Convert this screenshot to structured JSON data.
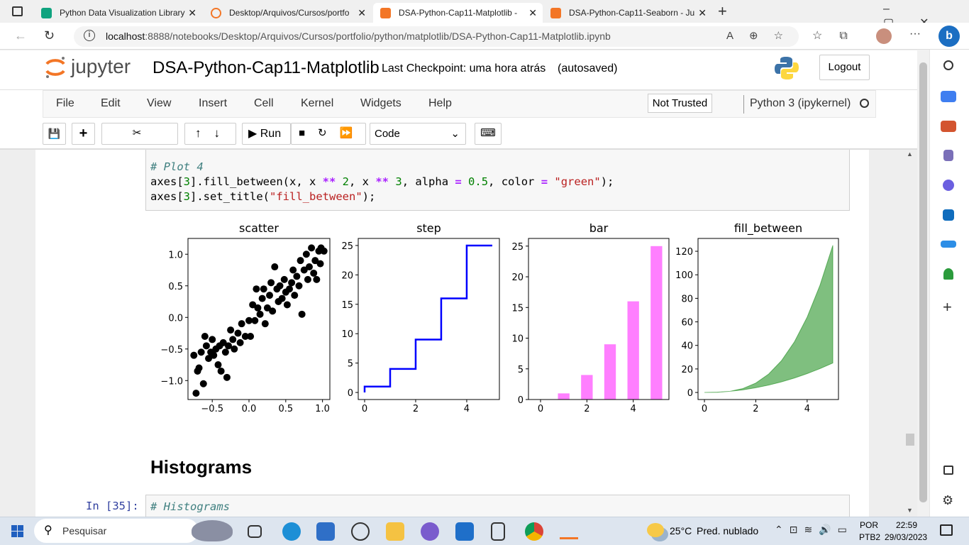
{
  "browser": {
    "tabs": [
      "Python Data Visualization Library",
      "Desktop/Arquivos/Cursos/portfo",
      "DSA-Python-Cap11-Matplotlib -",
      "DSA-Python-Cap11-Seaborn - Ju"
    ],
    "url_host": "localhost",
    "url_path": ":8888/notebooks/Desktop/Arquivos/Cursos/portfolio/python/matplotlib/DSA-Python-Cap11-Matplotlib.ipynb"
  },
  "header": {
    "logo": "jupyter",
    "notebook_title": "DSA-Python-Cap11-Matplotlib",
    "checkpoint": "Last Checkpoint: uma hora atrás",
    "autosave": "(autosaved)",
    "logout": "Logout"
  },
  "menu": {
    "items": [
      "File",
      "Edit",
      "View",
      "Insert",
      "Cell",
      "Kernel",
      "Widgets",
      "Help"
    ],
    "trust": "Not Trusted",
    "kernel": "Python 3 (ipykernel)"
  },
  "toolbar": {
    "run": "Run",
    "cell_type": "Code"
  },
  "cells": [
    {
      "code": [
        "# Plot 4",
        "axes[3].fill_between(x, x ** 2, x ** 3, alpha = 0.5, color = \"green\");",
        "axes[3].set_title(\"fill_between\");"
      ]
    },
    {
      "heading": "Histograms"
    },
    {
      "prompt": "In [35]:",
      "code": [
        "# Histograms"
      ]
    }
  ],
  "chart_data": [
    {
      "type": "scatter",
      "title": "scatter",
      "color": "black",
      "x": [
        -0.75,
        -0.72,
        -0.7,
        -0.68,
        -0.65,
        -0.62,
        -0.6,
        -0.58,
        -0.55,
        -0.52,
        -0.5,
        -0.48,
        -0.45,
        -0.42,
        -0.4,
        -0.38,
        -0.35,
        -0.32,
        -0.3,
        -0.28,
        -0.25,
        -0.22,
        -0.2,
        -0.15,
        -0.12,
        -0.1,
        -0.05,
        0.0,
        0.02,
        0.05,
        0.08,
        0.1,
        0.12,
        0.15,
        0.18,
        0.2,
        0.22,
        0.25,
        0.28,
        0.3,
        0.32,
        0.35,
        0.38,
        0.4,
        0.42,
        0.45,
        0.48,
        0.5,
        0.52,
        0.55,
        0.58,
        0.6,
        0.62,
        0.65,
        0.68,
        0.7,
        0.72,
        0.75,
        0.78,
        0.8,
        0.82,
        0.85,
        0.88,
        0.9,
        0.92,
        0.95,
        0.98,
        1.02,
        0.97
      ],
      "values": [
        -0.6,
        -1.2,
        -0.85,
        -0.8,
        -0.55,
        -1.05,
        -0.3,
        -0.45,
        -0.65,
        -0.55,
        -0.35,
        -0.6,
        -0.5,
        -0.75,
        -0.45,
        -0.85,
        -0.4,
        -0.55,
        -0.95,
        -0.45,
        -0.2,
        -0.35,
        -0.5,
        -0.25,
        -0.4,
        -0.1,
        -0.3,
        -0.05,
        -0.3,
        0.2,
        -0.05,
        0.45,
        0.15,
        0.05,
        0.3,
        0.45,
        -0.1,
        0.15,
        0.35,
        0.55,
        0.1,
        0.8,
        0.45,
        0.25,
        0.5,
        0.3,
        0.6,
        0.4,
        0.2,
        0.45,
        0.55,
        0.75,
        0.35,
        0.65,
        0.5,
        0.9,
        0.05,
        0.75,
        1.0,
        0.6,
        0.8,
        1.1,
        0.7,
        0.9,
        0.6,
        1.05,
        1.1,
        1.05,
        0.85
      ],
      "xlim": [
        -0.83,
        1.1
      ],
      "ylim": [
        -1.3,
        1.25
      ],
      "xticks": [
        {
          "value": -0.5,
          "label": "−0.5"
        },
        {
          "value": 0,
          "label": "0.0"
        },
        0.5,
        {
          "value": 1,
          "label": "1.0"
        }
      ],
      "yticks": [
        {
          "value": -1,
          "label": "−1.0"
        },
        {
          "value": -0.5,
          "label": "−0.5"
        },
        {
          "value": 0,
          "label": "0.0"
        },
        0.5,
        {
          "value": 1,
          "label": "1.0"
        }
      ]
    },
    {
      "type": "step",
      "title": "step",
      "color": "blue",
      "x": [
        0,
        1,
        2,
        3,
        4,
        5
      ],
      "values": [
        0,
        1,
        4,
        9,
        16,
        25
      ],
      "xlim": [
        -0.25,
        5.28
      ],
      "ylim": [
        -1.2,
        26.2
      ],
      "xticks": [
        0,
        2,
        4
      ],
      "yticks": [
        0,
        5,
        10,
        15,
        20,
        25
      ]
    },
    {
      "type": "bar",
      "title": "bar",
      "color": "magenta",
      "alpha": 0.5,
      "bar_width": 0.5,
      "x": [
        0,
        1,
        2,
        3,
        4,
        5
      ],
      "values": [
        0,
        1,
        4,
        9,
        16,
        25
      ],
      "xlim": [
        -0.52,
        5.54
      ],
      "ylim": [
        0,
        26.25
      ],
      "xticks": [
        0,
        2,
        4
      ],
      "yticks": [
        0,
        5,
        10,
        15,
        20,
        25
      ]
    },
    {
      "type": "fill_between",
      "title": "fill_between",
      "color": "green",
      "alpha": 0.5,
      "x": [
        0,
        0.5,
        1,
        1.5,
        2,
        2.5,
        3,
        3.5,
        4,
        4.5,
        5
      ],
      "y1": [
        0,
        0.25,
        1,
        2.25,
        4,
        6.25,
        9,
        12.25,
        16,
        20.25,
        25
      ],
      "y2": [
        0,
        0.125,
        1,
        3.375,
        8,
        15.625,
        27,
        42.875,
        64,
        91.125,
        125
      ],
      "xlim": [
        -0.25,
        5.22
      ],
      "ylim": [
        -6,
        130.9
      ],
      "xticks": [
        0,
        2,
        4
      ],
      "yticks": [
        0,
        20,
        40,
        60,
        80,
        100,
        120
      ]
    }
  ],
  "taskbar": {
    "search": "Pesquisar",
    "temp": "25°C",
    "weather": "Pred. nublado",
    "lang": "POR",
    "layout": "PTB2",
    "time": "22:59",
    "date": "29/03/2023"
  }
}
